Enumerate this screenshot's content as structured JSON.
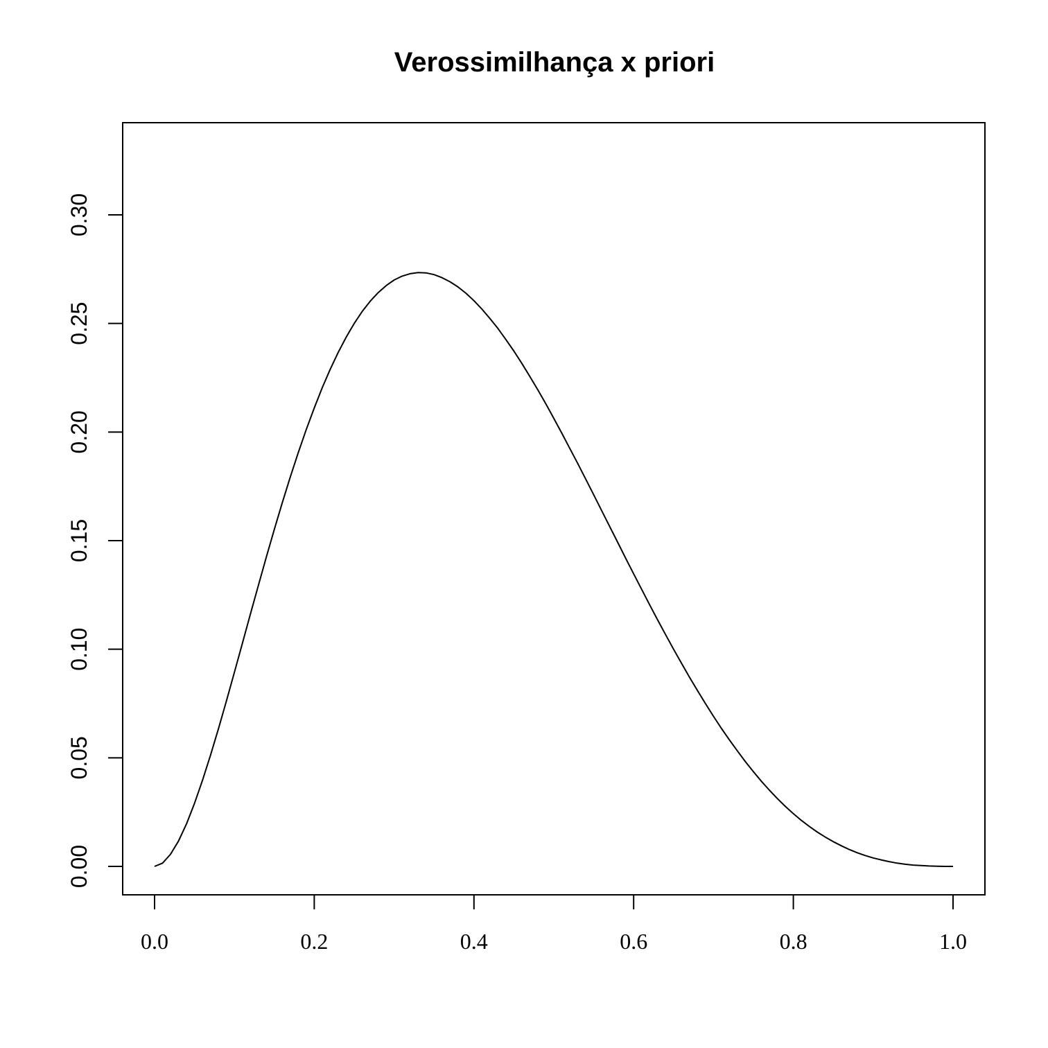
{
  "chart_data": {
    "type": "line",
    "title": "Verossimilhança x priori",
    "xlabel": "",
    "ylabel": "",
    "xlim": [
      0.0,
      1.0
    ],
    "ylim": [
      0.0,
      0.33
    ],
    "x_ticks": [
      "0.0",
      "0.2",
      "0.4",
      "0.6",
      "0.8",
      "1.0"
    ],
    "y_ticks": [
      "0.00",
      "0.05",
      "0.10",
      "0.15",
      "0.20",
      "0.25",
      "0.30"
    ],
    "grid": false,
    "series": [
      {
        "color": "#000000",
        "x": [
          0.0,
          0.01,
          0.02,
          0.03,
          0.04,
          0.05,
          0.06,
          0.07,
          0.08,
          0.09,
          0.1,
          0.11,
          0.12,
          0.13,
          0.14,
          0.15,
          0.16,
          0.17,
          0.18,
          0.19,
          0.2,
          0.21,
          0.22,
          0.23,
          0.24,
          0.25,
          0.26,
          0.27,
          0.28,
          0.29,
          0.3,
          0.31,
          0.32,
          0.33,
          0.34,
          0.35,
          0.36,
          0.37,
          0.38,
          0.39,
          0.4,
          0.41,
          0.42,
          0.43,
          0.44,
          0.45,
          0.46,
          0.47,
          0.48,
          0.49,
          0.5,
          0.51,
          0.52,
          0.53,
          0.54,
          0.55,
          0.56,
          0.57,
          0.58,
          0.59,
          0.6,
          0.61,
          0.62,
          0.63,
          0.64,
          0.65,
          0.66,
          0.67,
          0.68,
          0.69,
          0.7,
          0.71,
          0.72,
          0.73,
          0.74,
          0.75,
          0.76,
          0.77,
          0.78,
          0.79,
          0.8,
          0.81,
          0.82,
          0.83,
          0.84,
          0.85,
          0.86,
          0.87,
          0.88,
          0.89,
          0.9,
          0.91,
          0.92,
          0.93,
          0.94,
          0.95,
          0.96,
          0.97,
          0.98,
          0.99,
          1.0
        ],
        "y": [
          0.0,
          0.0015,
          0.0056,
          0.0117,
          0.0196,
          0.029,
          0.0396,
          0.0511,
          0.0634,
          0.0762,
          0.0894,
          0.1027,
          0.1161,
          0.1294,
          0.1425,
          0.1552,
          0.1675,
          0.1793,
          0.1906,
          0.2012,
          0.2111,
          0.2204,
          0.2289,
          0.2367,
          0.2437,
          0.25,
          0.2555,
          0.2602,
          0.2642,
          0.2674,
          0.27,
          0.2718,
          0.2729,
          0.2734,
          0.2733,
          0.2725,
          0.2711,
          0.2692,
          0.2668,
          0.2639,
          0.2605,
          0.2566,
          0.2523,
          0.2477,
          0.2426,
          0.2373,
          0.2316,
          0.2256,
          0.2194,
          0.213,
          0.2063,
          0.1995,
          0.1925,
          0.1855,
          0.1783,
          0.1711,
          0.1638,
          0.1565,
          0.1492,
          0.1419,
          0.1347,
          0.1276,
          0.1205,
          0.1135,
          0.1067,
          0.1,
          0.0935,
          0.0871,
          0.0809,
          0.0749,
          0.0691,
          0.0635,
          0.0582,
          0.0531,
          0.0482,
          0.0436,
          0.0392,
          0.0351,
          0.0312,
          0.0276,
          0.0243,
          0.0212,
          0.0184,
          0.0158,
          0.0135,
          0.0114,
          0.0095,
          0.0078,
          0.0063,
          0.005,
          0.0039,
          0.003,
          0.0022,
          0.0015,
          0.001,
          0.0006,
          0.0004,
          0.0002,
          0.0001,
          0.0,
          0.0
        ]
      }
    ]
  }
}
